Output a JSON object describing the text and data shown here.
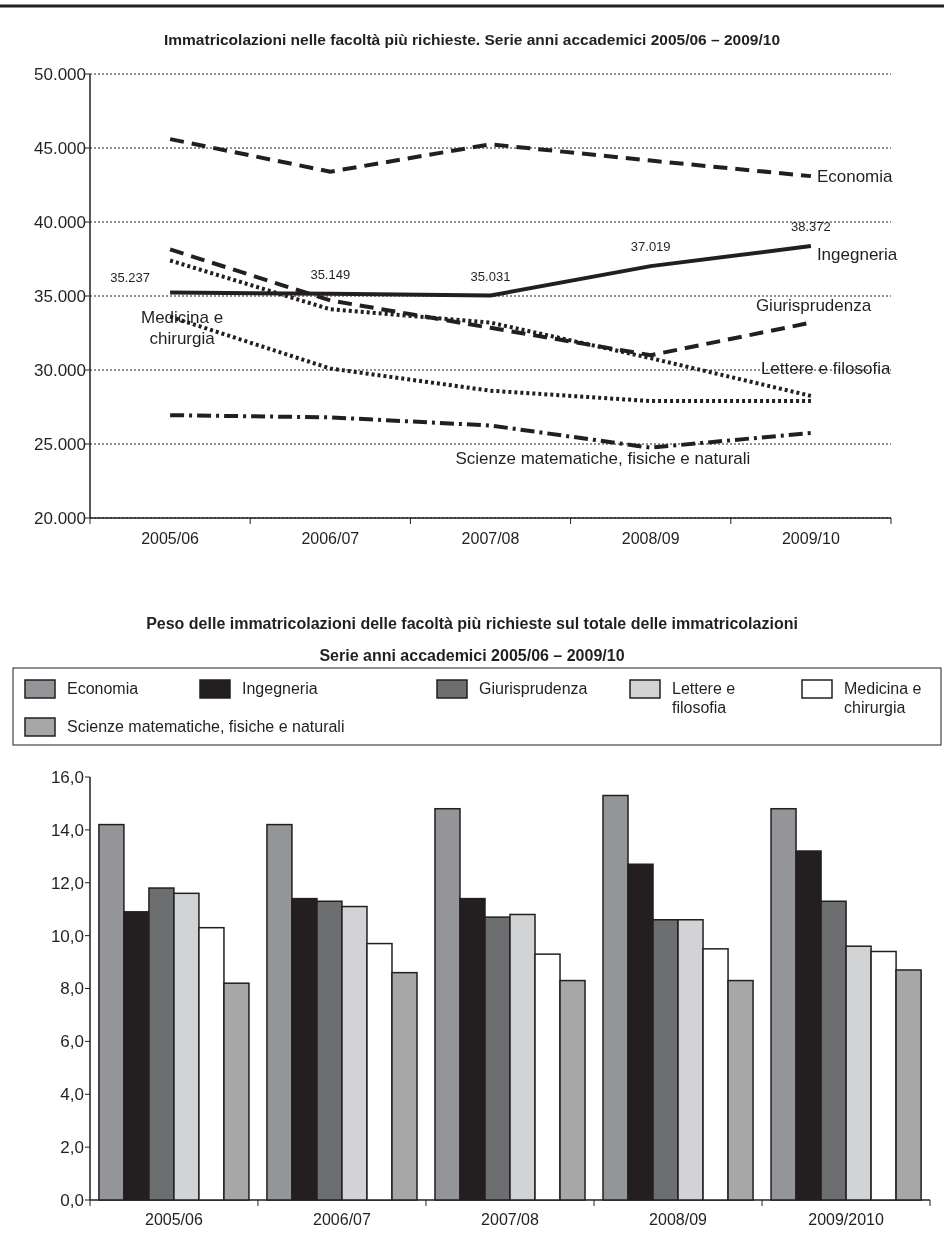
{
  "chart_data": [
    {
      "type": "line",
      "title": "Immatricolazioni nelle facoltà più richieste. Serie anni accademici 2005/06 – 2009/10",
      "categories": [
        "2005/06",
        "2006/07",
        "2007/08",
        "2008/09",
        "2009/10"
      ],
      "ylim": [
        20000,
        50000
      ],
      "yticks": [
        {
          "value": 20000,
          "label": "20.000"
        },
        {
          "value": 25000,
          "label": "25.000"
        },
        {
          "value": 30000,
          "label": "30.000"
        },
        {
          "value": 35000,
          "label": "35.000"
        },
        {
          "value": 40000,
          "label": "40.000"
        },
        {
          "value": 45000,
          "label": "45.000"
        },
        {
          "value": 50000,
          "label": "50.000"
        }
      ],
      "grid": "y",
      "series": [
        {
          "name": "Economia",
          "color": "#231f20",
          "line_style": "dashed",
          "values": [
            45600,
            43400,
            45250,
            44150,
            43100
          ]
        },
        {
          "name": "Ingegneria",
          "color": "#231f20",
          "line_style": "solid",
          "values": [
            35237,
            35149,
            35031,
            37019,
            38372
          ],
          "value_labels": [
            "35.237",
            "35.149",
            "35.031",
            "37.019",
            "38.372"
          ]
        },
        {
          "name": "Giurisprudenza",
          "color": "#231f20",
          "line_style": "dashed",
          "values": [
            38150,
            34700,
            32850,
            31000,
            33200
          ]
        },
        {
          "name": "Lettere e filosofia",
          "color": "#231f20",
          "line_style": "dotted",
          "values": [
            37400,
            34100,
            33200,
            30800,
            28250
          ]
        },
        {
          "name": "Medicina e chirurgia",
          "color": "#231f20",
          "line_style": "dotted",
          "values": [
            33600,
            30100,
            28600,
            27900,
            27900
          ]
        },
        {
          "name": "Scienze matematiche, fisiche e naturali",
          "color": "#231f20",
          "line_style": "dashdot",
          "values": [
            26950,
            26800,
            26250,
            24750,
            25750
          ]
        }
      ]
    },
    {
      "type": "bar",
      "title": "Peso delle immatricolazioni delle facoltà più richieste sul totale delle immatricolazioni",
      "subtitle": "Serie anni accademici 2005/06 – 2009/10",
      "categories": [
        "2005/06",
        "2006/07",
        "2007/08",
        "2008/09",
        "2009/2010"
      ],
      "ylim": [
        0,
        16
      ],
      "yticks": [
        {
          "value": 0,
          "label": "0,0"
        },
        {
          "value": 2,
          "label": "2,0"
        },
        {
          "value": 4,
          "label": "4,0"
        },
        {
          "value": 6,
          "label": "6,0"
        },
        {
          "value": 8,
          "label": "8,0"
        },
        {
          "value": 10,
          "label": "10,0"
        },
        {
          "value": 12,
          "label": "12,0"
        },
        {
          "value": 14,
          "label": "14,0"
        },
        {
          "value": 16,
          "label": "16,0"
        }
      ],
      "legend": "top",
      "series": [
        {
          "name": "Economia",
          "color": "#939598",
          "values": [
            14.2,
            14.2,
            14.8,
            15.3,
            14.8
          ]
        },
        {
          "name": "Ingegneria",
          "color": "#231f20",
          "values": [
            10.9,
            11.4,
            11.4,
            12.7,
            13.2
          ]
        },
        {
          "name": "Giurisprudenza",
          "color": "#6d6e70",
          "values": [
            11.8,
            11.3,
            10.7,
            10.6,
            11.3
          ]
        },
        {
          "name": "Lettere e filosofia",
          "color": "#d1d3d4",
          "values": [
            11.6,
            11.1,
            10.8,
            10.6,
            9.6
          ]
        },
        {
          "name": "Medicina e chirurgia",
          "color": "#ffffff",
          "values": [
            10.3,
            9.7,
            9.3,
            9.5,
            9.4
          ]
        },
        {
          "name": "Scienze matematiche, fisiche e naturali",
          "color": "#a7a7a7",
          "values": [
            8.2,
            8.6,
            8.3,
            8.3,
            8.7
          ]
        }
      ]
    }
  ]
}
